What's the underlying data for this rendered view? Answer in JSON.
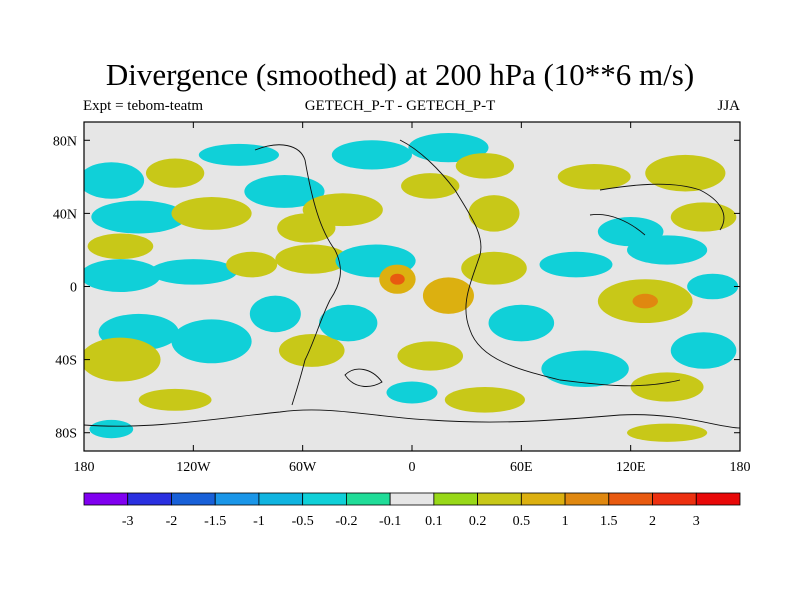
{
  "title": "Divergence (smoothed) at 200 hPa (10**6 m/s)",
  "subtitle_left": "Expt = tebom-teatm",
  "subtitle_center": "GETECH_P-T - GETECH_P-T",
  "subtitle_right": "JJA",
  "chart_data": {
    "type": "heatmap",
    "title": "Divergence (smoothed) at 200 hPa (10**6 m/s)",
    "projection": "cylindrical equidistant",
    "xlim": [
      -180,
      180
    ],
    "ylim": [
      -90,
      90
    ],
    "x_ticks": [
      {
        "value": -180,
        "label": "180"
      },
      {
        "value": -120,
        "label": "120W"
      },
      {
        "value": -60,
        "label": "60W"
      },
      {
        "value": 0,
        "label": "0"
      },
      {
        "value": 60,
        "label": "60E"
      },
      {
        "value": 120,
        "label": "120E"
      },
      {
        "value": 180,
        "label": "180"
      }
    ],
    "y_ticks": [
      {
        "value": 80,
        "label": "80N"
      },
      {
        "value": 40,
        "label": "40N"
      },
      {
        "value": 0,
        "label": "0"
      },
      {
        "value": -40,
        "label": "40S"
      },
      {
        "value": -80,
        "label": "80S"
      }
    ],
    "colorbar": {
      "labels": [
        "-3",
        "-2",
        "-1.5",
        "-1",
        "-0.5",
        "-0.2",
        "-0.1",
        "0.1",
        "0.2",
        "0.5",
        "1",
        "1.5",
        "2",
        "3"
      ],
      "colors": [
        "#8000f0",
        "#2a30e0",
        "#1860d8",
        "#1a96e8",
        "#10b4e0",
        "#10d0d8",
        "#20dc98",
        "#e6e6e6",
        "#98d818",
        "#c8c818",
        "#dcb010",
        "#e08810",
        "#e85a10",
        "#ec3010",
        "#e80808"
      ]
    },
    "regions": [
      {
        "lon": -165,
        "lat": 58,
        "rx": 18,
        "ry": 10,
        "value": -0.3
      },
      {
        "lon": -130,
        "lat": 62,
        "rx": 16,
        "ry": 8,
        "value": 0.3
      },
      {
        "lon": -95,
        "lat": 72,
        "rx": 22,
        "ry": 6,
        "value": -0.3
      },
      {
        "lon": -150,
        "lat": 38,
        "rx": 26,
        "ry": 9,
        "value": -0.3
      },
      {
        "lon": -160,
        "lat": 22,
        "rx": 18,
        "ry": 7,
        "value": 0.3
      },
      {
        "lon": -110,
        "lat": 40,
        "rx": 22,
        "ry": 9,
        "value": 0.3
      },
      {
        "lon": -70,
        "lat": 52,
        "rx": 22,
        "ry": 9,
        "value": -0.3
      },
      {
        "lon": -58,
        "lat": 32,
        "rx": 16,
        "ry": 8,
        "value": 0.3
      },
      {
        "lon": -38,
        "lat": 42,
        "rx": 22,
        "ry": 9,
        "value": 0.3
      },
      {
        "lon": -22,
        "lat": 72,
        "rx": 22,
        "ry": 8,
        "value": -0.3
      },
      {
        "lon": 20,
        "lat": 76,
        "rx": 22,
        "ry": 8,
        "value": -0.3
      },
      {
        "lon": 10,
        "lat": 55,
        "rx": 16,
        "ry": 7,
        "value": 0.3
      },
      {
        "lon": 40,
        "lat": 66,
        "rx": 16,
        "ry": 7,
        "value": 0.3
      },
      {
        "lon": 45,
        "lat": 40,
        "rx": 14,
        "ry": 10,
        "value": 0.3
      },
      {
        "lon": 100,
        "lat": 60,
        "rx": 20,
        "ry": 7,
        "value": 0.3
      },
      {
        "lon": 150,
        "lat": 62,
        "rx": 22,
        "ry": 10,
        "value": 0.3
      },
      {
        "lon": 160,
        "lat": 38,
        "rx": 18,
        "ry": 8,
        "value": 0.3
      },
      {
        "lon": 120,
        "lat": 30,
        "rx": 18,
        "ry": 8,
        "value": -0.3
      },
      {
        "lon": -160,
        "lat": 6,
        "rx": 22,
        "ry": 9,
        "value": -0.3
      },
      {
        "lon": -120,
        "lat": 8,
        "rx": 24,
        "ry": 7,
        "value": -0.3
      },
      {
        "lon": -88,
        "lat": 12,
        "rx": 14,
        "ry": 7,
        "value": 0.3
      },
      {
        "lon": -55,
        "lat": 15,
        "rx": 20,
        "ry": 8,
        "value": 0.3
      },
      {
        "lon": -20,
        "lat": 14,
        "rx": 22,
        "ry": 9,
        "value": -0.3
      },
      {
        "lon": -8,
        "lat": 4,
        "rx": 10,
        "ry": 8,
        "value": 1.0
      },
      {
        "lon": -8,
        "lat": 4,
        "rx": 4,
        "ry": 3,
        "value": 1.8
      },
      {
        "lon": 20,
        "lat": -5,
        "rx": 14,
        "ry": 10,
        "value": 0.8
      },
      {
        "lon": 45,
        "lat": 10,
        "rx": 18,
        "ry": 9,
        "value": 0.3
      },
      {
        "lon": 90,
        "lat": 12,
        "rx": 20,
        "ry": 7,
        "value": -0.3
      },
      {
        "lon": 140,
        "lat": 20,
        "rx": 22,
        "ry": 8,
        "value": -0.3
      },
      {
        "lon": 165,
        "lat": 0,
        "rx": 14,
        "ry": 7,
        "value": -0.3
      },
      {
        "lon": 128,
        "lat": -8,
        "rx": 26,
        "ry": 12,
        "value": 0.5
      },
      {
        "lon": 128,
        "lat": -8,
        "rx": 7,
        "ry": 4,
        "value": 1.2
      },
      {
        "lon": -150,
        "lat": -25,
        "rx": 22,
        "ry": 10,
        "value": -0.3
      },
      {
        "lon": -160,
        "lat": -40,
        "rx": 22,
        "ry": 12,
        "value": 0.5
      },
      {
        "lon": -110,
        "lat": -30,
        "rx": 22,
        "ry": 12,
        "value": -0.3
      },
      {
        "lon": -75,
        "lat": -15,
        "rx": 14,
        "ry": 10,
        "value": -0.3
      },
      {
        "lon": -55,
        "lat": -35,
        "rx": 18,
        "ry": 9,
        "value": 0.3
      },
      {
        "lon": -35,
        "lat": -20,
        "rx": 16,
        "ry": 10,
        "value": -0.3
      },
      {
        "lon": 10,
        "lat": -38,
        "rx": 18,
        "ry": 8,
        "value": 0.3
      },
      {
        "lon": 60,
        "lat": -20,
        "rx": 18,
        "ry": 10,
        "value": -0.3
      },
      {
        "lon": 95,
        "lat": -45,
        "rx": 24,
        "ry": 10,
        "value": -0.3
      },
      {
        "lon": 160,
        "lat": -35,
        "rx": 18,
        "ry": 10,
        "value": -0.3
      },
      {
        "lon": 140,
        "lat": -55,
        "rx": 20,
        "ry": 8,
        "value": 0.3
      },
      {
        "lon": -130,
        "lat": -62,
        "rx": 20,
        "ry": 6,
        "value": 0.3
      },
      {
        "lon": 40,
        "lat": -62,
        "rx": 22,
        "ry": 7,
        "value": 0.3
      },
      {
        "lon": 0,
        "lat": -58,
        "rx": 14,
        "ry": 6,
        "value": -0.3
      },
      {
        "lon": -165,
        "lat": -78,
        "rx": 12,
        "ry": 5,
        "value": -0.3
      },
      {
        "lon": 140,
        "lat": -80,
        "rx": 22,
        "ry": 5,
        "value": 0.3
      }
    ]
  }
}
